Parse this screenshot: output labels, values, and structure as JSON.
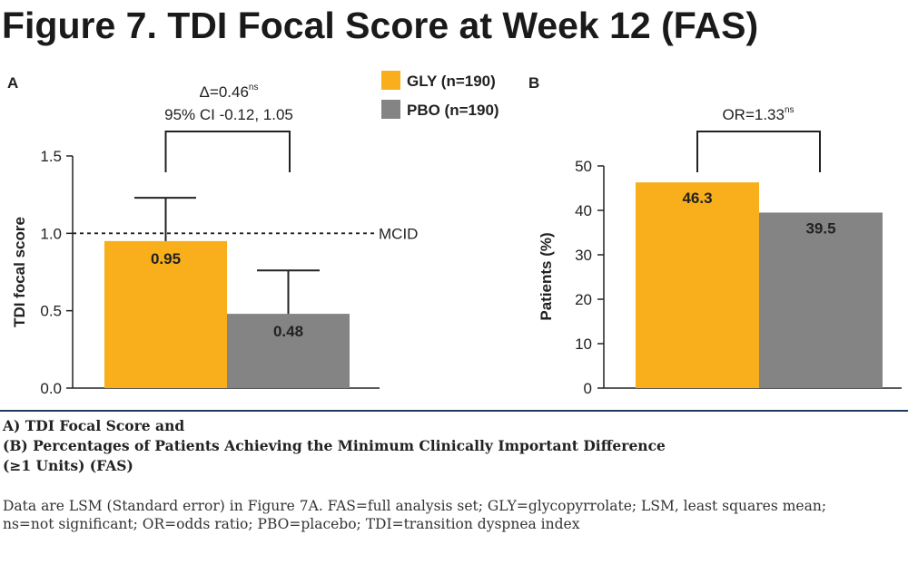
{
  "figure_title": "Figure 7. TDI Focal Score at Week 12 (FAS)",
  "colors": {
    "gly": "#F9AE1B",
    "pbo": "#848484",
    "axis": "#222222",
    "caption_rule": "#1f3a5f"
  },
  "legend": [
    {
      "label": "GLY (n=190)",
      "color": "#F9AE1B"
    },
    {
      "label": "PBO (n=190)",
      "color": "#848484"
    }
  ],
  "chart_data": [
    {
      "panel": "A",
      "type": "bar",
      "ylabel": "TDI focal score",
      "ylim": [
        0,
        1.5
      ],
      "yticks": [
        "0.0",
        "0.5",
        "1.0",
        "1.5"
      ],
      "series": [
        {
          "name": "GLY (n=190)",
          "value": 0.95,
          "label": "0.95",
          "error_upper": 1.23
        },
        {
          "name": "PBO (n=190)",
          "value": 0.48,
          "label": "0.48",
          "error_upper": 0.76
        }
      ],
      "reference_line": {
        "value": 1.0,
        "label": "MCID"
      },
      "annotation": {
        "delta": "Δ=0.46",
        "delta_sup": "ns",
        "ci": "95% CI -0.12, 1.05"
      }
    },
    {
      "panel": "B",
      "type": "bar",
      "ylabel": "Patients (%)",
      "ylim": [
        0,
        50
      ],
      "yticks": [
        "0",
        "10",
        "20",
        "30",
        "40",
        "50"
      ],
      "series": [
        {
          "name": "GLY (n=190)",
          "value": 46.3,
          "label": "46.3"
        },
        {
          "name": "PBO (n=190)",
          "value": 39.5,
          "label": "39.5"
        }
      ],
      "annotation": {
        "or": "OR=1.33",
        "or_sup": "ns"
      }
    }
  ],
  "caption": {
    "line1": "A) TDI Focal Score and",
    "line2": "(B) Percentages of Patients Achieving the Minimum Clinically Important Difference",
    "line3": "(≥1 Units) (FAS)",
    "note": "Data are LSM (Standard error) in Figure 7A. FAS=full analysis set; GLY=glycopyrrolate; LSM, least squares mean; ns=not significant; OR=odds ratio; PBO=placebo; TDI=transition dyspnea index"
  }
}
